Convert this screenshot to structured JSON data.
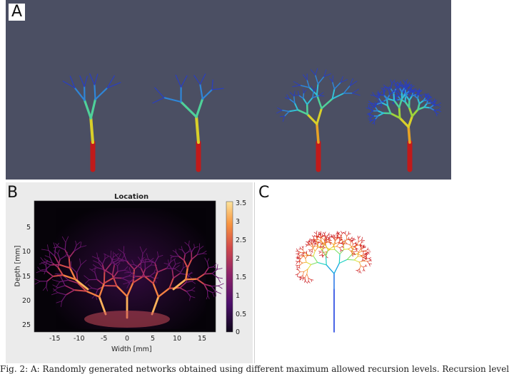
{
  "panel_a": {
    "letter": "A"
  },
  "panel_b": {
    "letter": "B",
    "title": "Location",
    "xlabel": "Width [mm]",
    "ylabel": "Depth [mm]",
    "x_ticks": [
      "-15",
      "-10",
      "-5",
      "0",
      "5",
      "10",
      "15"
    ],
    "y_ticks": [
      "5",
      "10",
      "15",
      "20",
      "25"
    ],
    "colorbar_ticks": [
      "3.5",
      "3",
      "2.5",
      "2",
      "1.5",
      "1",
      "0.5",
      "0"
    ],
    "colormap": [
      "#0d0718",
      "#4c0f6b",
      "#8f2468",
      "#d24b4b",
      "#f89540",
      "#fde49c"
    ]
  },
  "panel_c": {
    "letter": "C"
  },
  "colors": {
    "root_red": "#c11a1a",
    "background_panel_a": "#4b4f63"
  },
  "caption": "Fig. 2: A: Randomly generated networks obtained using different maximum allowed recursion levels. Recursion level"
}
